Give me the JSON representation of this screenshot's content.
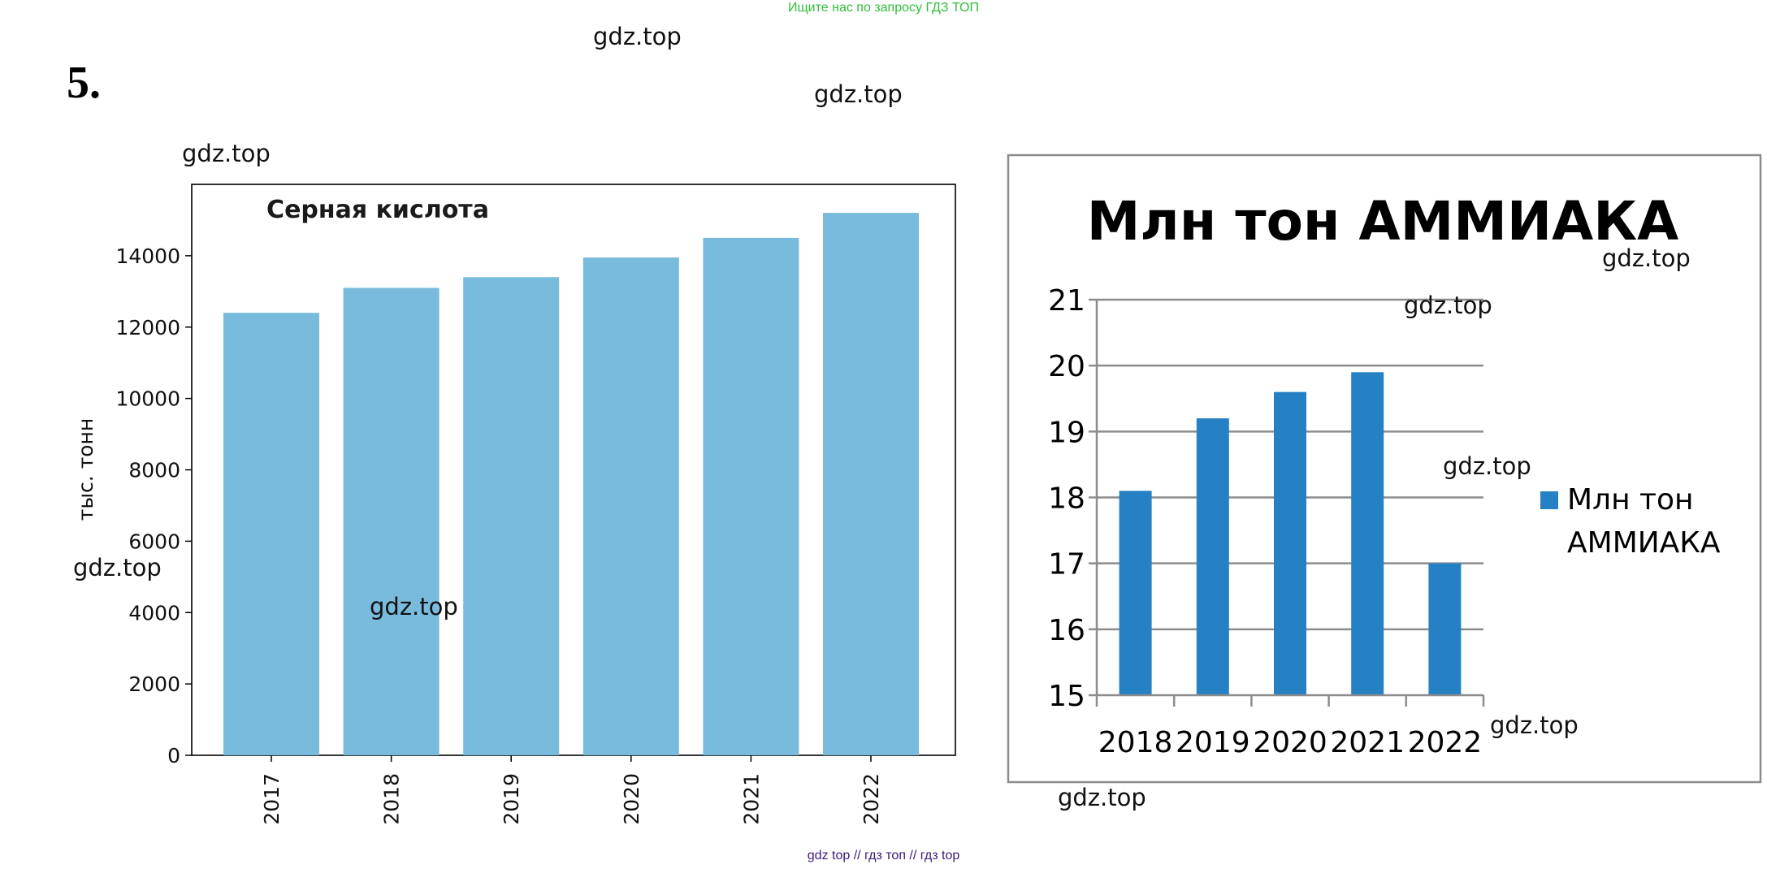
{
  "banner": "Ищите нас по запросу ГДЗ ТОП",
  "task_number": "5.",
  "watermark": "gdz.top",
  "footer": "gdz top  //  гдз топ  //  гдз top",
  "colors": {
    "bar1": "#79bbdc",
    "bar2": "#2581c4",
    "banner": "#2fbf3a",
    "footer": "#3c1a78"
  },
  "chart_data": [
    {
      "type": "bar",
      "title": "Серная кислота",
      "ylabel": "тыс. тонн",
      "xlabel": "",
      "categories": [
        "2017",
        "2018",
        "2019",
        "2020",
        "2021",
        "2022"
      ],
      "values": [
        12400,
        13100,
        13400,
        13950,
        14500,
        15200
      ],
      "ylim": [
        0,
        16000
      ],
      "yticks": [
        0,
        2000,
        4000,
        6000,
        8000,
        10000,
        12000,
        14000
      ],
      "grid": false,
      "legend": "none"
    },
    {
      "type": "bar",
      "title": "Млн тон АММИАКА",
      "xlabel": "",
      "ylabel": "",
      "categories": [
        "2018",
        "2019",
        "2020",
        "2021",
        "2022"
      ],
      "series": [
        {
          "name": "Млн тон АММИАКА",
          "values": [
            18.1,
            19.2,
            19.6,
            19.9,
            17.0
          ]
        }
      ],
      "ylim": [
        15,
        21
      ],
      "yticks": [
        15,
        16,
        17,
        18,
        19,
        20,
        21
      ],
      "grid": true,
      "legend": "right"
    }
  ]
}
